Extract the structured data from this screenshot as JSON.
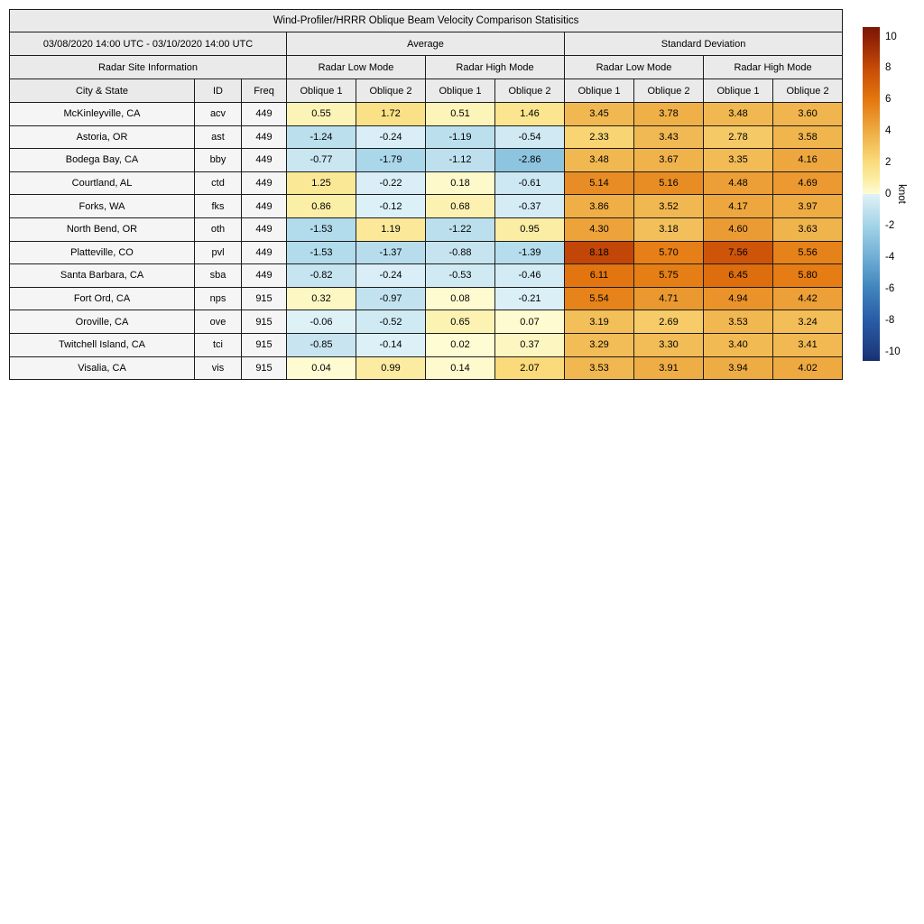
{
  "table": {
    "title": "Wind-Profiler/HRRR Oblique Beam Velocity Comparison Statisitics",
    "period": "03/08/2020 14:00 UTC - 03/10/2020 14:00 UTC",
    "section_headers": {
      "average": "Average",
      "std": "Standard Deviation"
    },
    "site_info_header": "Radar Site Information",
    "mode_headers": [
      "Radar Low Mode",
      "Radar High Mode",
      "Radar Low Mode",
      "Radar High Mode"
    ],
    "column_headers": {
      "city": "City & State",
      "id": "ID",
      "freq": "Freq",
      "oblique1": "Oblique 1",
      "oblique2": "Oblique 2"
    }
  },
  "chart_data": {
    "type": "table",
    "title": "Wind-Profiler/HRRR Oblique Beam Velocity Comparison Statisitics",
    "period": "03/08/2020 14:00 UTC - 03/10/2020 14:00 UTC",
    "column_groups": [
      "Average / Radar Low Mode",
      "Average / Radar High Mode",
      "Standard Deviation / Radar Low Mode",
      "Standard Deviation / Radar High Mode"
    ],
    "value_columns": [
      "Avg Low Oblique 1",
      "Avg Low Oblique 2",
      "Avg High Oblique 1",
      "Avg High Oblique 2",
      "Std Low Oblique 1",
      "Std Low Oblique 2",
      "Std High Oblique 1",
      "Std High Oblique 2"
    ],
    "unit": "knot",
    "rows": [
      {
        "city": "McKinleyville, CA",
        "id": "acv",
        "freq": "449",
        "values": [
          "0.55",
          "1.72",
          "0.51",
          "1.46",
          "3.45",
          "3.78",
          "3.48",
          "3.60"
        ]
      },
      {
        "city": "Astoria, OR",
        "id": "ast",
        "freq": "449",
        "values": [
          "-1.24",
          "-0.24",
          "-1.19",
          "-0.54",
          "2.33",
          "3.43",
          "2.78",
          "3.58"
        ]
      },
      {
        "city": "Bodega Bay, CA",
        "id": "bby",
        "freq": "449",
        "values": [
          "-0.77",
          "-1.79",
          "-1.12",
          "-2.86",
          "3.48",
          "3.67",
          "3.35",
          "4.16"
        ]
      },
      {
        "city": "Courtland, AL",
        "id": "ctd",
        "freq": "449",
        "values": [
          "1.25",
          "-0.22",
          "0.18",
          "-0.61",
          "5.14",
          "5.16",
          "4.48",
          "4.69"
        ]
      },
      {
        "city": "Forks, WA",
        "id": "fks",
        "freq": "449",
        "values": [
          "0.86",
          "-0.12",
          "0.68",
          "-0.37",
          "3.86",
          "3.52",
          "4.17",
          "3.97"
        ]
      },
      {
        "city": "North Bend, OR",
        "id": "oth",
        "freq": "449",
        "values": [
          "-1.53",
          "1.19",
          "-1.22",
          "0.95",
          "4.30",
          "3.18",
          "4.60",
          "3.63"
        ]
      },
      {
        "city": "Platteville, CO",
        "id": "pvl",
        "freq": "449",
        "values": [
          "-1.53",
          "-1.37",
          "-0.88",
          "-1.39",
          "8.18",
          "5.70",
          "7.56",
          "5.56"
        ]
      },
      {
        "city": "Santa Barbara, CA",
        "id": "sba",
        "freq": "449",
        "values": [
          "-0.82",
          "-0.24",
          "-0.53",
          "-0.46",
          "6.11",
          "5.75",
          "6.45",
          "5.80"
        ]
      },
      {
        "city": "Fort Ord, CA",
        "id": "nps",
        "freq": "915",
        "values": [
          "0.32",
          "-0.97",
          "0.08",
          "-0.21",
          "5.54",
          "4.71",
          "4.94",
          "4.42"
        ]
      },
      {
        "city": "Oroville, CA",
        "id": "ove",
        "freq": "915",
        "values": [
          "-0.06",
          "-0.52",
          "0.65",
          "0.07",
          "3.19",
          "2.69",
          "3.53",
          "3.24"
        ]
      },
      {
        "city": "Twitchell Island, CA",
        "id": "tci",
        "freq": "915",
        "values": [
          "-0.85",
          "-0.14",
          "0.02",
          "0.37",
          "3.29",
          "3.30",
          "3.40",
          "3.41"
        ]
      },
      {
        "city": "Visalia, CA",
        "id": "vis",
        "freq": "915",
        "values": [
          "0.04",
          "0.99",
          "0.14",
          "2.07",
          "3.53",
          "3.91",
          "3.94",
          "4.02"
        ]
      }
    ]
  },
  "colorbar": {
    "label": "knot",
    "ticks": [
      "10",
      "8",
      "6",
      "4",
      "2",
      "0",
      "-2",
      "-4",
      "-6",
      "-8",
      "-10"
    ],
    "tick_values": [
      10,
      8,
      6,
      4,
      2,
      0,
      -2,
      -4,
      -6,
      -8,
      -10
    ],
    "vmin_extended": -10.6,
    "vmax_extended": 10.6,
    "warm_anchors": [
      [
        0,
        "#fefcd4"
      ],
      [
        1,
        "#fbeca0"
      ],
      [
        2,
        "#fadc7c"
      ],
      [
        4,
        "#eeab42"
      ],
      [
        6,
        "#e4770f"
      ],
      [
        8,
        "#c64a07"
      ],
      [
        10,
        "#8c1f06"
      ],
      [
        10.6,
        "#7b1704"
      ]
    ],
    "cool_anchors": [
      [
        0,
        "#e0f2f8"
      ],
      [
        -1,
        "#c2e2ef"
      ],
      [
        -2,
        "#a3d4e8"
      ],
      [
        -4,
        "#70aed5"
      ],
      [
        -6,
        "#3f84bd"
      ],
      [
        -8,
        "#2a5ca7"
      ],
      [
        -10,
        "#1e3c80"
      ],
      [
        -10.6,
        "#16306e"
      ]
    ]
  }
}
